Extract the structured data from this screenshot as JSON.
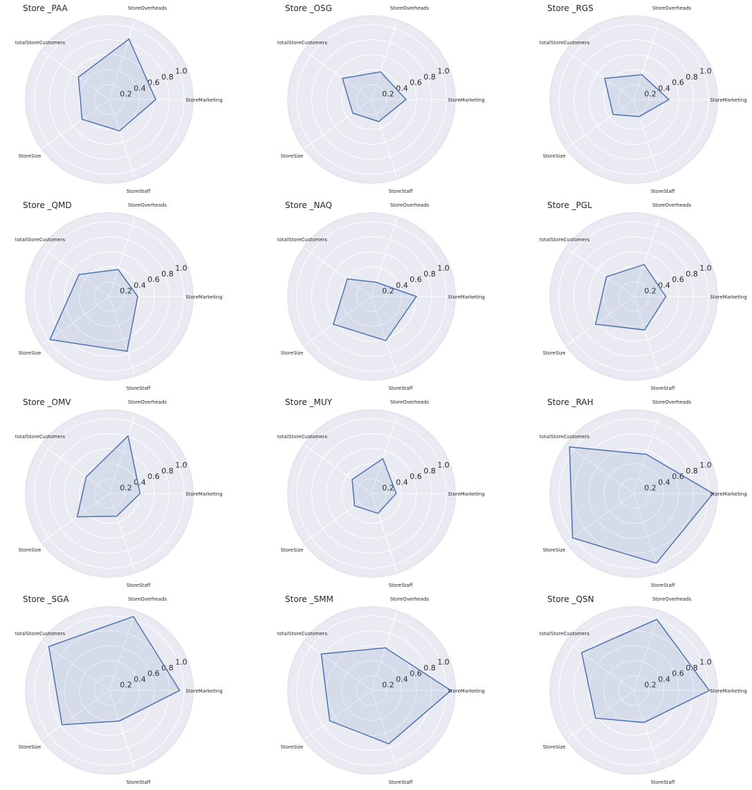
{
  "chart_data": [
    {
      "type": "radar",
      "title": "Store _PAA",
      "axes": [
        "StoreMarketing",
        "StoreOverheads",
        "totalStoreCustomers",
        "StoreSize",
        "StoreStaff"
      ],
      "values": [
        0.62,
        0.85,
        0.51,
        0.45,
        0.44
      ],
      "rticks": [
        0.2,
        0.4,
        0.6,
        0.8,
        1.0
      ],
      "rlim": [
        0,
        1.1
      ],
      "grid": true
    },
    {
      "type": "radar",
      "title": "Store _OSG",
      "axes": [
        "StoreMarketing",
        "StoreOverheads",
        "totalStoreCustomers",
        "StoreSize",
        "StoreStaff"
      ],
      "values": [
        0.46,
        0.39,
        0.48,
        0.31,
        0.31
      ],
      "rticks": [
        0.2,
        0.4,
        0.6,
        0.8,
        1.0
      ],
      "rlim": [
        0,
        1.1
      ],
      "grid": true
    },
    {
      "type": "radar",
      "title": "Store _RGS",
      "axes": [
        "StoreMarketing",
        "StoreOverheads",
        "totalStoreCustomers",
        "StoreSize",
        "StoreStaff"
      ],
      "values": [
        0.47,
        0.35,
        0.48,
        0.34,
        0.24
      ],
      "rticks": [
        0.2,
        0.4,
        0.6,
        0.8,
        1.0
      ],
      "rlim": [
        0,
        1.1
      ],
      "grid": true
    },
    {
      "type": "radar",
      "title": "Store _QMD",
      "axes": [
        "StoreMarketing",
        "StoreOverheads",
        "totalStoreCustomers",
        "StoreSize",
        "StoreStaff"
      ],
      "values": [
        0.38,
        0.38,
        0.5,
        0.98,
        0.77
      ],
      "rticks": [
        0.2,
        0.4,
        0.6,
        0.8,
        1.0
      ],
      "rlim": [
        0,
        1.1
      ],
      "grid": true
    },
    {
      "type": "radar",
      "title": "Store _NAQ",
      "axes": [
        "StoreMarketing",
        "StoreOverheads",
        "totalStoreCustomers",
        "StoreSize",
        "StoreStaff"
      ],
      "values": [
        0.6,
        0.2,
        0.4,
        0.63,
        0.62
      ],
      "rticks": [
        0.2,
        0.4,
        0.6,
        0.8,
        1.0
      ],
      "rlim": [
        0,
        1.1
      ],
      "grid": true
    },
    {
      "type": "radar",
      "title": "Store _PGL",
      "axes": [
        "StoreMarketing",
        "StoreOverheads",
        "totalStoreCustomers",
        "StoreSize",
        "StoreStaff"
      ],
      "values": [
        0.43,
        0.45,
        0.45,
        0.63,
        0.47
      ],
      "rticks": [
        0.2,
        0.4,
        0.6,
        0.8,
        1.0
      ],
      "rlim": [
        0,
        1.1
      ],
      "grid": true
    },
    {
      "type": "radar",
      "title": "Store _OMV",
      "axes": [
        "StoreMarketing",
        "StoreOverheads",
        "totalStoreCustomers",
        "StoreSize",
        "StoreStaff"
      ],
      "values": [
        0.41,
        0.81,
        0.38,
        0.53,
        0.32
      ],
      "rticks": [
        0.2,
        0.4,
        0.6,
        0.8,
        1.0
      ],
      "rlim": [
        0,
        1.1
      ],
      "grid": true
    },
    {
      "type": "radar",
      "title": "Store _MUY",
      "axes": [
        "StoreMarketing",
        "StoreOverheads",
        "totalStoreCustomers",
        "StoreSize",
        "StoreStaff"
      ],
      "values": [
        0.33,
        0.49,
        0.32,
        0.28,
        0.28
      ],
      "rticks": [
        0.2,
        0.4,
        0.6,
        0.8,
        1.0
      ],
      "rlim": [
        0,
        1.1
      ],
      "grid": true
    },
    {
      "type": "radar",
      "title": "Store _RAH",
      "axes": [
        "StoreMarketing",
        "StoreOverheads",
        "totalStoreCustomers",
        "StoreSize",
        "StoreStaff"
      ],
      "values": [
        1.06,
        0.55,
        1.06,
        1.01,
        0.98
      ],
      "rticks": [
        0.2,
        0.4,
        0.6,
        0.8,
        1.0
      ],
      "rlim": [
        0,
        1.1
      ],
      "grid": true
    },
    {
      "type": "radar",
      "title": "Store _SGA",
      "axes": [
        "StoreMarketing",
        "StoreOverheads",
        "totalStoreCustomers",
        "StoreSize",
        "StoreStaff"
      ],
      "values": [
        0.94,
        1.04,
        1.0,
        0.78,
        0.43
      ],
      "rticks": [
        0.2,
        0.4,
        0.6,
        0.8,
        1.0
      ],
      "rlim": [
        0,
        1.1
      ],
      "grid": true
    },
    {
      "type": "radar",
      "title": "Store _SMM",
      "axes": [
        "StoreMarketing",
        "StoreOverheads",
        "totalStoreCustomers",
        "StoreSize",
        "StoreStaff"
      ],
      "values": [
        1.06,
        0.6,
        0.83,
        0.69,
        0.75
      ],
      "rticks": [
        0.2,
        0.4,
        0.6,
        0.8,
        1.0
      ],
      "rlim": [
        0,
        1.1
      ],
      "grid": true
    },
    {
      "type": "radar",
      "title": "Store _QSN",
      "axes": [
        "StoreMarketing",
        "StoreOverheads",
        "totalStoreCustomers",
        "StoreSize",
        "StoreStaff"
      ],
      "values": [
        1.01,
        1.0,
        0.86,
        0.63,
        0.45
      ],
      "rticks": [
        0.2,
        0.4,
        0.6,
        0.8,
        1.0
      ],
      "rlim": [
        0,
        1.1
      ],
      "grid": true
    }
  ],
  "colors": {
    "background": "#ffffff",
    "plot_background": "#eaeaf2",
    "grid": "#ffffff",
    "series_line": "#4c72b0",
    "text": "#262626"
  }
}
